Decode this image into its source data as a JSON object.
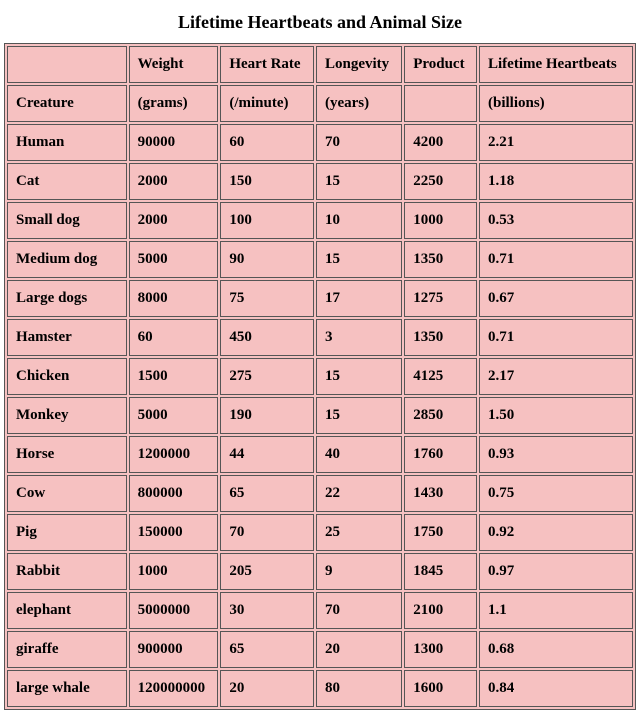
{
  "table": {
    "type": "table",
    "title": "Lifetime Heartbeats and Animal Size",
    "background_color": "#f6c1c1",
    "border_color": "#555555",
    "text_color": "#000000",
    "title_fontsize": 18,
    "cell_fontsize": 15,
    "font_weight": "bold",
    "font_family": "Times New Roman",
    "header_row1": [
      "",
      "Weight",
      "Heart Rate",
      "Longevity",
      "Product",
      "Lifetime Heartbeats"
    ],
    "header_row2": [
      "Creature",
      "(grams)",
      "(/minute)",
      "(years)",
      "",
      "(billions)"
    ],
    "columns": [
      "creature",
      "weight_grams",
      "heart_rate_per_min",
      "longevity_years",
      "product",
      "lifetime_heartbeats_billions"
    ],
    "column_align": [
      "left",
      "left",
      "left",
      "left",
      "left",
      "left"
    ],
    "rows": [
      [
        "Human",
        "90000",
        "60",
        "70",
        "4200",
        "2.21"
      ],
      [
        "Cat",
        "2000",
        "150",
        "15",
        "2250",
        "1.18"
      ],
      [
        "Small dog",
        "2000",
        "100",
        "10",
        "1000",
        "0.53"
      ],
      [
        "Medium dog",
        "5000",
        "90",
        "15",
        "1350",
        "0.71"
      ],
      [
        "Large dogs",
        "8000",
        "75",
        "17",
        "1275",
        "0.67"
      ],
      [
        "Hamster",
        "60",
        "450",
        "3",
        "1350",
        "0.71"
      ],
      [
        "Chicken",
        "1500",
        "275",
        "15",
        "4125",
        "2.17"
      ],
      [
        "Monkey",
        "5000",
        "190",
        "15",
        "2850",
        "1.50"
      ],
      [
        "Horse",
        "1200000",
        "44",
        "40",
        "1760",
        "0.93"
      ],
      [
        "Cow",
        "800000",
        "65",
        "22",
        "1430",
        "0.75"
      ],
      [
        "Pig",
        "150000",
        "70",
        "25",
        "1750",
        "0.92"
      ],
      [
        "Rabbit",
        "1000",
        "205",
        "9",
        "1845",
        "0.97"
      ],
      [
        "elephant",
        "5000000",
        "30",
        "70",
        "2100",
        "1.1"
      ],
      [
        "giraffe",
        "900000",
        "65",
        "20",
        "1300",
        "0.68"
      ],
      [
        "large whale",
        "120000000",
        "20",
        "80",
        "1600",
        "0.84"
      ]
    ]
  }
}
